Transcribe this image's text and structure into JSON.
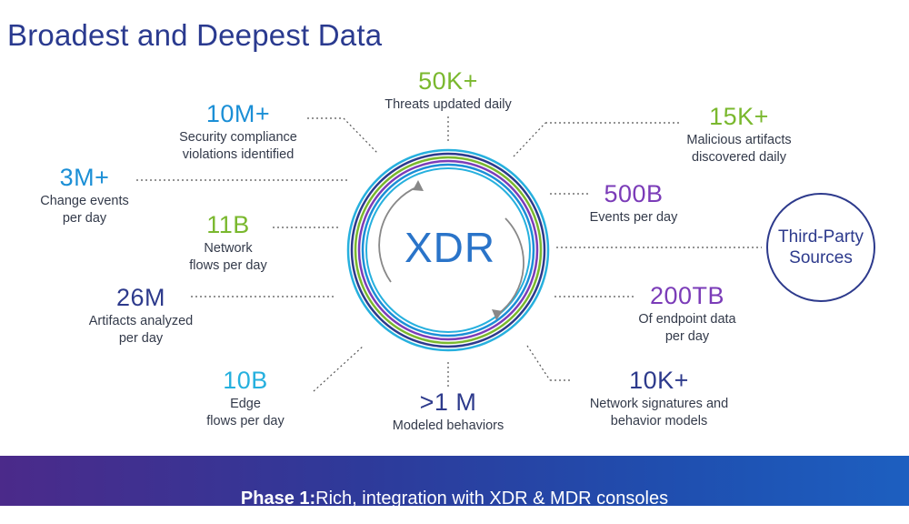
{
  "title": "Broadest and Deepest Data",
  "center_label": "XDR",
  "third_party": "Third-Party\nSources",
  "stats": {
    "threats": {
      "value": "50K+",
      "desc": "Threats updated daily"
    },
    "security": {
      "value": "10M+",
      "desc": "Security compliance\nviolations identified"
    },
    "change": {
      "value": "3M+",
      "desc": "Change events\nper day"
    },
    "network": {
      "value": "11B",
      "desc": "Network\nflows per day"
    },
    "artifacts": {
      "value": "26M",
      "desc": "Artifacts analyzed\nper day"
    },
    "edge": {
      "value": "10B",
      "desc": "Edge\nflows per day"
    },
    "modeled": {
      "value": ">1 M",
      "desc": "Modeled behaviors"
    },
    "malicious": {
      "value": "15K+",
      "desc": "Malicious artifacts\ndiscovered daily"
    },
    "events": {
      "value": "500B",
      "desc": "Events per day"
    },
    "endpoint": {
      "value": "200TB",
      "desc": "Of endpoint data\nper day"
    },
    "signatures": {
      "value": "10K+",
      "desc": "Network signatures and\nbehavior models"
    }
  },
  "footer": {
    "strong": "Phase 1:",
    "rest": " Rich, integration with XDR & MDR consoles"
  },
  "colors": {
    "green": "#7ab82e",
    "blue": "#1b8fd6",
    "navy": "#2d3a8c",
    "purple": "#7b3cb8",
    "cyan": "#26b0de"
  }
}
